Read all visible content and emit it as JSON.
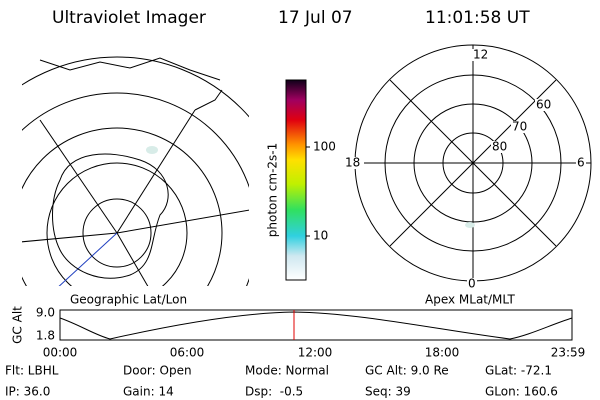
{
  "header": {
    "title": "Ultraviolet Imager",
    "date": "17 Jul 07",
    "time": "11:01:58 UT"
  },
  "left_panel": {
    "caption": "Geographic Lat/Lon"
  },
  "colorbar": {
    "label": "photon cm-2s-1",
    "ticks": [
      "100",
      "10"
    ]
  },
  "right_panel": {
    "caption": "Apex MLat/MLT",
    "mlt_labels": [
      "12",
      "18",
      "6",
      "0"
    ],
    "lat_labels": [
      "60",
      "70",
      "80"
    ]
  },
  "timeline": {
    "axis_label": "GC Alt",
    "y_labels": [
      "9.0",
      "1.8"
    ],
    "time_labels": [
      "00:00",
      "06:00",
      "12:00",
      "18:00",
      "23:59"
    ]
  },
  "info": {
    "rows": [
      [
        "Flt: LBHL",
        "Door: Open",
        "Mode: Normal",
        "GC Alt: 9.0 Re",
        "GLat: -72.1"
      ],
      [
        "IP: 36.0",
        "Gain: 14",
        "Dsp:  -0.5",
        "Seq: 39",
        "GLon: 160.6"
      ]
    ]
  }
}
